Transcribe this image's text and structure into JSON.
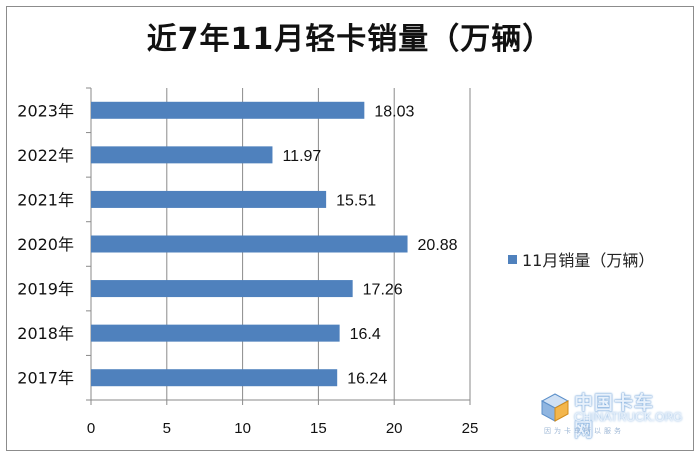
{
  "chart_data": {
    "type": "bar",
    "orientation": "horizontal",
    "title": "近7年11月轻卡销量（万辆）",
    "categories": [
      "2023年",
      "2022年",
      "2021年",
      "2020年",
      "2019年",
      "2018年",
      "2017年"
    ],
    "series": [
      {
        "name": "11月销量（万辆）",
        "values": [
          18.03,
          11.97,
          15.51,
          20.88,
          17.26,
          16.4,
          16.24
        ],
        "value_labels": [
          "18.03",
          "11.97",
          "15.51",
          "20.88",
          "17.26",
          "16.4",
          "16.24"
        ]
      }
    ],
    "xlim": [
      0,
      25
    ],
    "x_ticks": [
      "0",
      "5",
      "10",
      "15",
      "20",
      "25"
    ],
    "grid": "vertical",
    "legend": "right",
    "bar_color": "#4f81bd"
  },
  "watermark": {
    "cn": "中国卡车网",
    "en": "CHINATRUCK.ORG",
    "sub": "因为卡车所以服务"
  }
}
